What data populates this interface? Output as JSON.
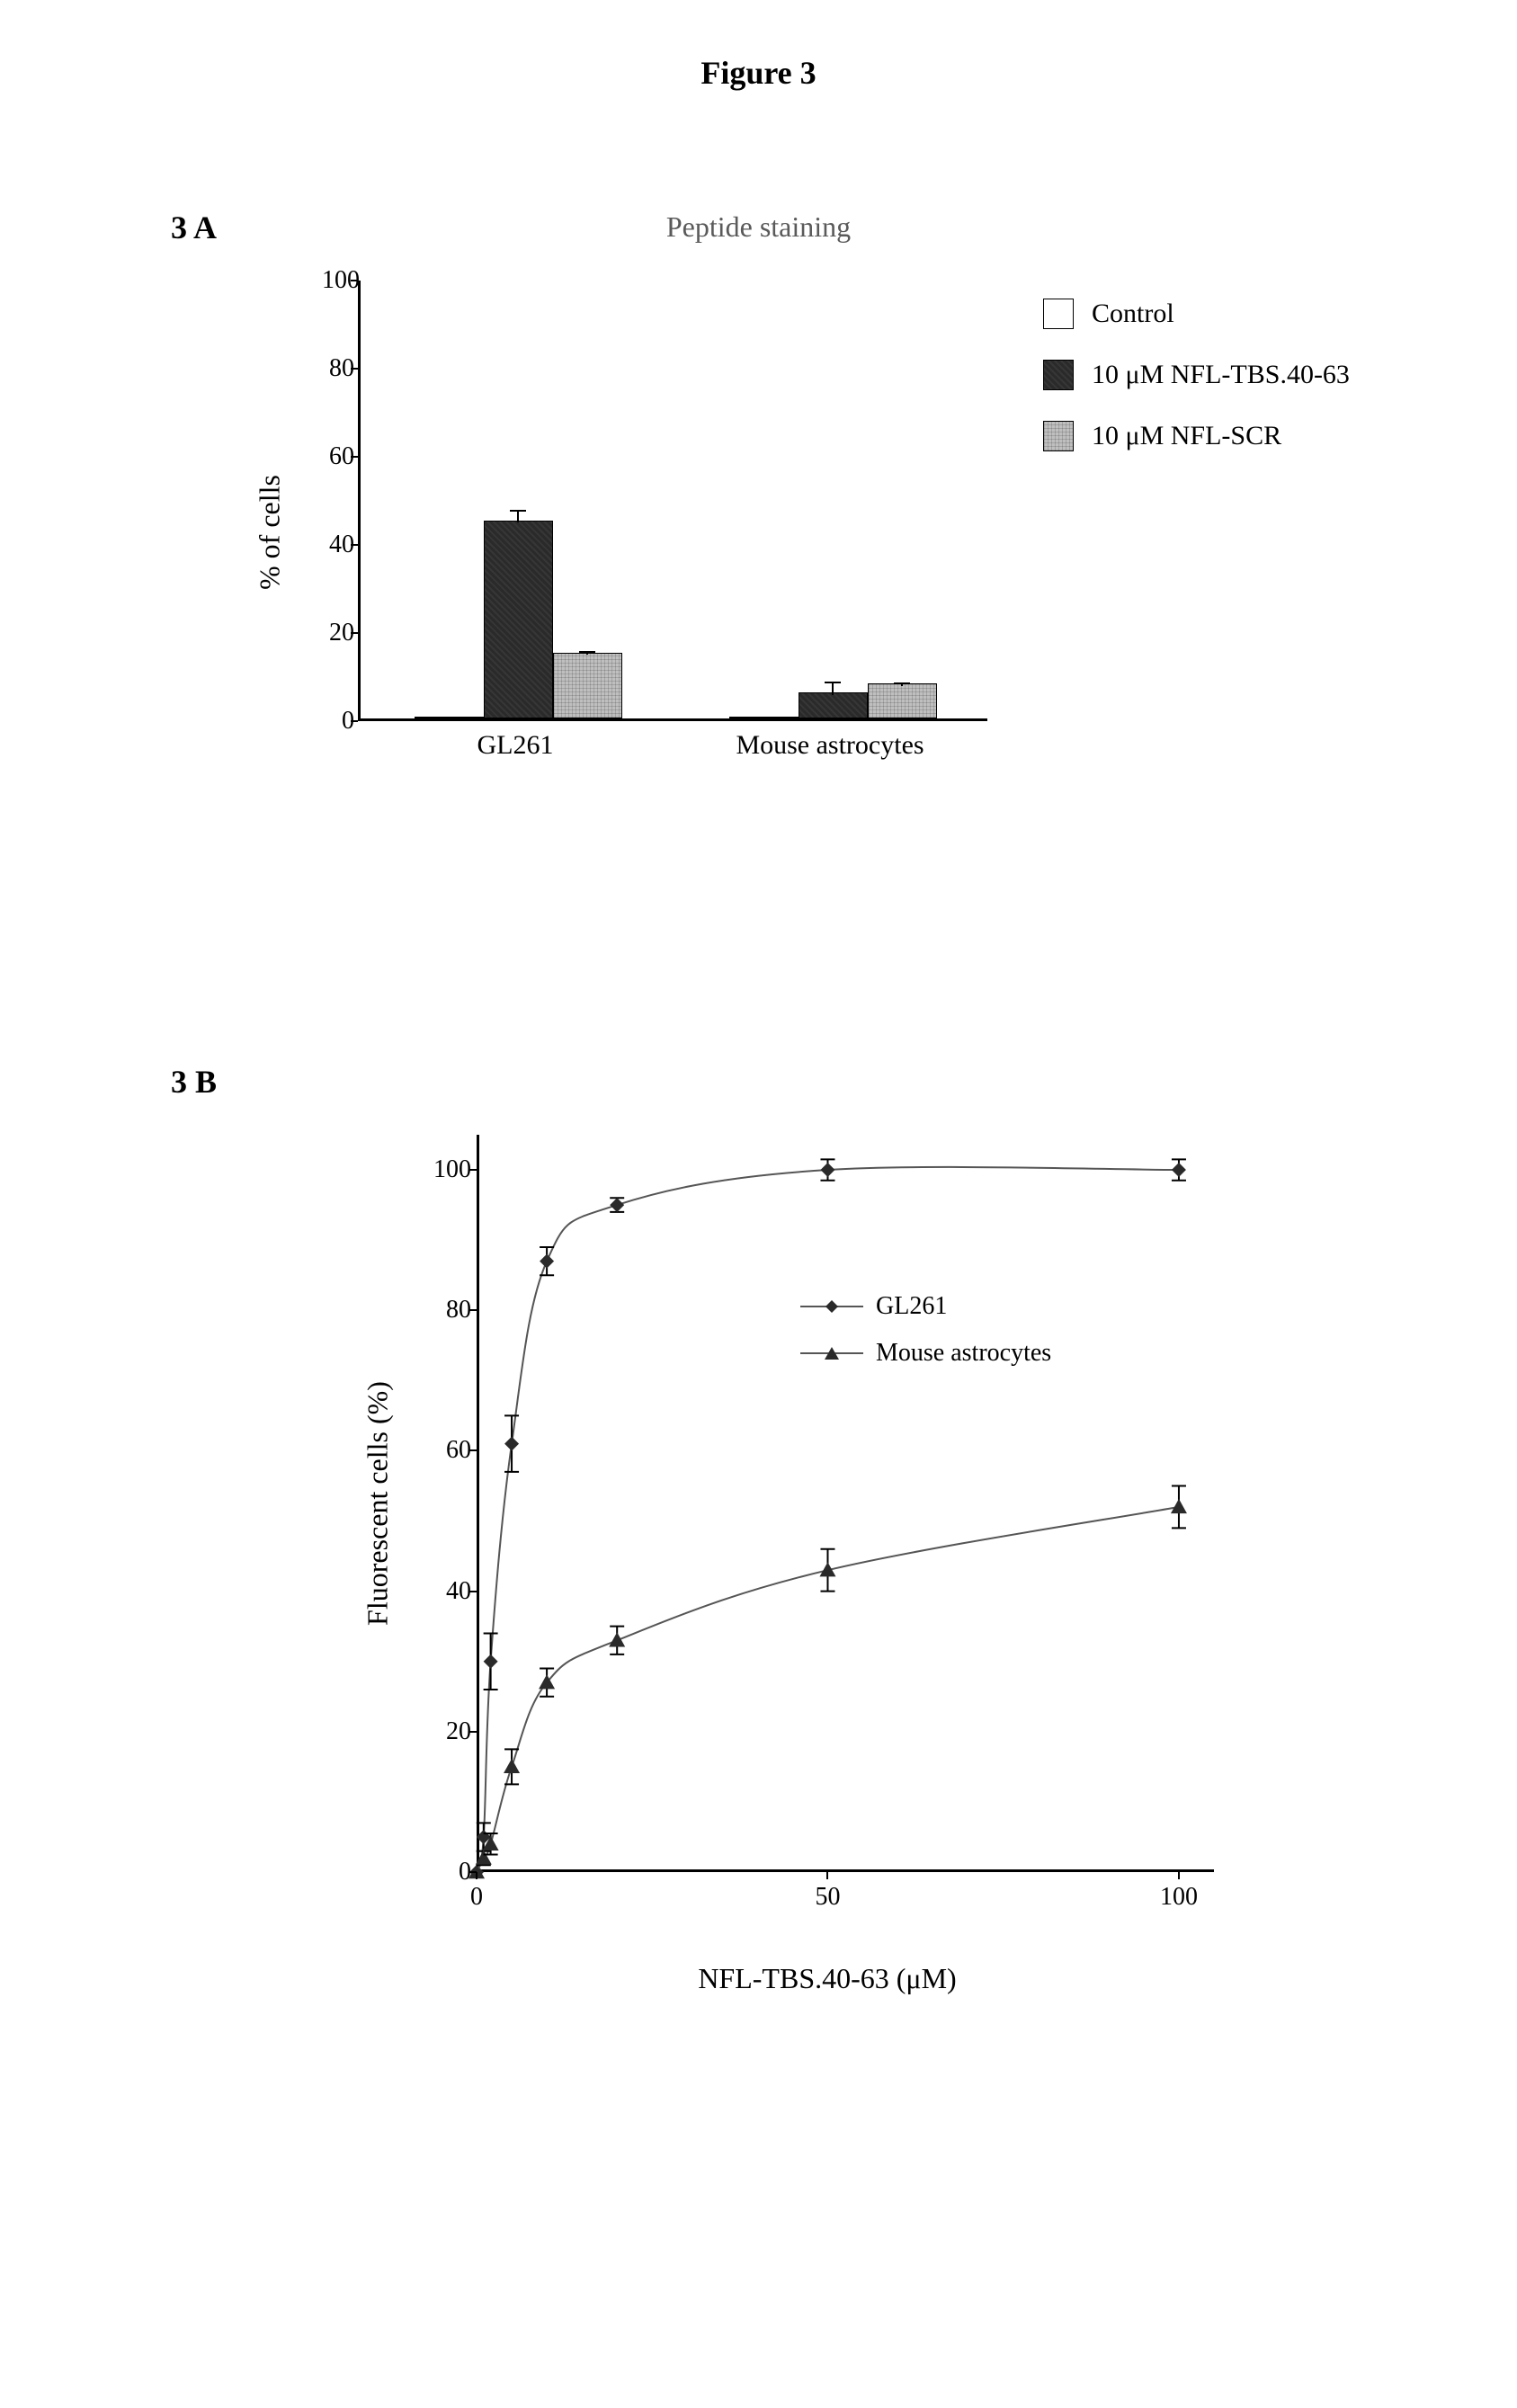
{
  "figure_title": "Figure 3",
  "panelA": {
    "label": "3 A",
    "title": "Peptide staining",
    "type": "bar",
    "ylabel": "% of cells",
    "ylim": [
      0,
      100
    ],
    "ytick_step": 20,
    "yticks": [
      0,
      20,
      40,
      60,
      80,
      100
    ],
    "categories": [
      "GL261",
      "Mouse astrocytes"
    ],
    "series": [
      {
        "name": "Control",
        "fill": "#ffffff",
        "pattern": "none",
        "values": [
          0,
          0
        ],
        "err": [
          0,
          0
        ]
      },
      {
        "name": "10 μM NFL-TBS.40-63",
        "fill": "#2a2a2a",
        "pattern": "dark",
        "values": [
          45,
          6
        ],
        "err": [
          3,
          3
        ]
      },
      {
        "name": "10 μM NFL-SCR",
        "fill": "#bfbfbf",
        "pattern": "light",
        "values": [
          15,
          8
        ],
        "err": [
          1,
          0.7
        ]
      }
    ],
    "bar_width": 0.22,
    "group_gap": 0.45,
    "background_color": "#ffffff",
    "axis_color": "#000000",
    "label_fontsize": 32,
    "tick_fontsize": 28,
    "legend_fontsize": 30
  },
  "panelB": {
    "label": "3 B",
    "type": "line",
    "ylabel": "Fluorescent cells (%)",
    "xlabel": "NFL-TBS.40-63 (μM)",
    "xlim": [
      0,
      105
    ],
    "ylim": [
      0,
      105
    ],
    "yticks": [
      0,
      20,
      40,
      60,
      80,
      100
    ],
    "xticks": [
      0,
      50,
      100
    ],
    "series": [
      {
        "name": "GL261",
        "marker": "diamond",
        "color": "#2a2a2a",
        "line_color": "#555555",
        "line_width": 2,
        "marker_size": 8,
        "x": [
          0,
          1,
          2,
          5,
          10,
          20,
          50,
          100
        ],
        "y": [
          0,
          5,
          30,
          61,
          87,
          95,
          100,
          100
        ],
        "err": [
          0,
          2,
          4,
          4,
          2,
          1,
          1.5,
          1.5
        ]
      },
      {
        "name": "Mouse astrocytes",
        "marker": "triangle",
        "color": "#2a2a2a",
        "line_color": "#555555",
        "line_width": 2,
        "marker_size": 9,
        "x": [
          0,
          1,
          2,
          5,
          10,
          20,
          50,
          100
        ],
        "y": [
          0,
          2,
          4,
          15,
          27,
          33,
          43,
          52
        ],
        "err": [
          0,
          1,
          1.5,
          2.5,
          2,
          2,
          3,
          3
        ]
      }
    ],
    "background_color": "#ffffff",
    "axis_color": "#000000",
    "label_fontsize": 32,
    "tick_fontsize": 28,
    "legend_fontsize": 28
  }
}
